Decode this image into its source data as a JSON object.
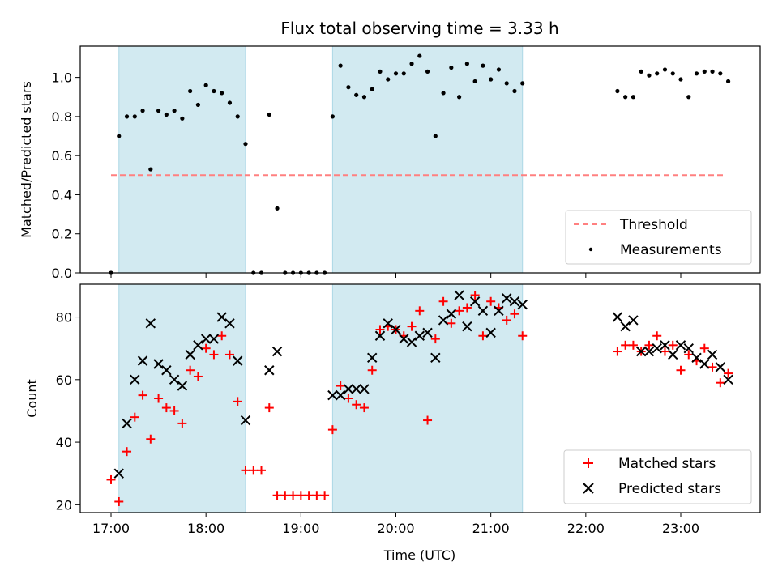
{
  "chart_data": {
    "type": "scatter",
    "title": "Flux total observing time = 3.33 h",
    "xlabel": "Time (UTC)",
    "x_ticks": [
      "17:00",
      "18:00",
      "19:00",
      "20:00",
      "21:00",
      "22:00",
      "23:00"
    ],
    "shaded_intervals": [
      [
        "17:05",
        "18:25"
      ],
      [
        "19:20",
        "21:20"
      ]
    ],
    "shade_color": "#add8e6",
    "panels": [
      {
        "ylabel": "Matched/Predicted stars",
        "ylim": [
          0,
          1.16
        ],
        "y_ticks": [
          "0.0",
          "0.2",
          "0.4",
          "0.6",
          "0.8",
          "1.0"
        ],
        "legend_position": "lower-right",
        "series": [
          {
            "name": "Threshold",
            "kind": "dashed-line",
            "color": "#ff8080",
            "x": [
              "17:00",
              "23:28"
            ],
            "y": [
              0.5,
              0.5
            ]
          },
          {
            "name": "Measurements",
            "kind": "dot",
            "color": "#000000",
            "x": [
              "17:00",
              "17:05",
              "17:10",
              "17:15",
              "17:20",
              "17:25",
              "17:30",
              "17:35",
              "17:40",
              "17:45",
              "17:50",
              "17:55",
              "18:00",
              "18:05",
              "18:10",
              "18:15",
              "18:20",
              "18:25",
              "18:30",
              "18:35",
              "18:40",
              "18:45",
              "18:50",
              "18:55",
              "19:00",
              "19:05",
              "19:10",
              "19:15",
              "19:20",
              "19:25",
              "19:30",
              "19:35",
              "19:40",
              "19:45",
              "19:50",
              "19:55",
              "20:00",
              "20:05",
              "20:10",
              "20:15",
              "20:20",
              "20:25",
              "20:30",
              "20:35",
              "20:40",
              "20:45",
              "20:50",
              "20:55",
              "21:00",
              "21:05",
              "21:10",
              "21:15",
              "21:20",
              "22:20",
              "22:25",
              "22:30",
              "22:35",
              "22:40",
              "22:45",
              "22:50",
              "22:55",
              "23:00",
              "23:05",
              "23:10",
              "23:15",
              "23:20",
              "23:25",
              "23:30"
            ],
            "y": [
              0.0,
              0.7,
              0.8,
              0.8,
              0.83,
              0.53,
              0.83,
              0.81,
              0.83,
              0.79,
              0.93,
              0.86,
              0.96,
              0.93,
              0.92,
              0.87,
              0.8,
              0.66,
              0.0,
              0.0,
              0.81,
              0.33,
              0.0,
              0.0,
              0.0,
              0.0,
              0.0,
              0.0,
              0.8,
              1.06,
              0.95,
              0.91,
              0.9,
              0.94,
              1.03,
              0.99,
              1.02,
              1.02,
              1.07,
              1.11,
              1.03,
              0.7,
              0.92,
              1.05,
              0.9,
              1.07,
              0.98,
              1.06,
              0.99,
              1.04,
              0.97,
              0.93,
              0.97,
              0.93,
              0.9,
              0.9,
              1.03,
              1.01,
              1.02,
              1.04,
              1.02,
              0.99,
              0.9,
              1.02,
              1.03,
              1.03,
              1.02,
              0.98
            ]
          }
        ]
      },
      {
        "ylabel": "Count",
        "ylim": [
          17.5,
          90.5
        ],
        "y_ticks": [
          "20",
          "40",
          "60",
          "80"
        ],
        "legend_position": "lower-right",
        "series": [
          {
            "name": "Matched stars",
            "kind": "plus",
            "color": "#ff0000",
            "x": [
              "17:00",
              "17:05",
              "17:10",
              "17:15",
              "17:20",
              "17:25",
              "17:30",
              "17:35",
              "17:40",
              "17:45",
              "17:50",
              "17:55",
              "18:00",
              "18:05",
              "18:10",
              "18:15",
              "18:20",
              "18:25",
              "18:30",
              "18:35",
              "18:40",
              "18:45",
              "18:50",
              "18:55",
              "19:00",
              "19:05",
              "19:10",
              "19:15",
              "19:20",
              "19:25",
              "19:30",
              "19:35",
              "19:40",
              "19:45",
              "19:50",
              "19:55",
              "20:00",
              "20:05",
              "20:10",
              "20:15",
              "20:20",
              "20:25",
              "20:30",
              "20:35",
              "20:40",
              "20:45",
              "20:50",
              "20:55",
              "21:00",
              "21:05",
              "21:10",
              "21:15",
              "21:20",
              "22:20",
              "22:25",
              "22:30",
              "22:35",
              "22:40",
              "22:45",
              "22:50",
              "22:55",
              "23:00",
              "23:05",
              "23:10",
              "23:15",
              "23:20",
              "23:25",
              "23:30"
            ],
            "y": [
              28,
              21,
              37,
              48,
              55,
              41,
              54,
              51,
              50,
              46,
              63,
              61,
              70,
              68,
              74,
              68,
              53,
              31,
              31,
              31,
              51,
              23,
              23,
              23,
              23,
              23,
              23,
              23,
              44,
              58,
              54,
              52,
              51,
              63,
              76,
              77,
              76,
              74,
              77,
              82,
              47,
              73,
              85,
              78,
              82,
              83,
              87,
              74,
              85,
              83,
              79,
              81,
              74,
              69,
              71,
              71,
              69,
              71,
              74,
              69,
              71,
              63,
              68,
              66,
              70,
              64,
              59,
              62
            ],
            "note": ""
          },
          {
            "name": "Predicted stars",
            "kind": "cross",
            "color": "#000000",
            "x": [
              "17:05",
              "17:10",
              "17:15",
              "17:20",
              "17:25",
              "17:30",
              "17:35",
              "17:40",
              "17:45",
              "17:50",
              "17:55",
              "18:00",
              "18:05",
              "18:10",
              "18:15",
              "18:20",
              "18:25",
              "18:40",
              "18:45",
              "19:20",
              "19:25",
              "19:30",
              "19:35",
              "19:40",
              "19:45",
              "19:50",
              "19:55",
              "20:00",
              "20:05",
              "20:10",
              "20:15",
              "20:20",
              "20:25",
              "20:30",
              "20:35",
              "20:40",
              "20:45",
              "20:50",
              "20:55",
              "21:00",
              "21:05",
              "21:10",
              "21:15",
              "21:20",
              "22:20",
              "22:25",
              "22:30",
              "22:35",
              "22:40",
              "22:45",
              "22:50",
              "22:55",
              "23:00",
              "23:05",
              "23:10",
              "23:15",
              "23:20",
              "23:25",
              "23:30"
            ],
            "y": [
              30,
              46,
              60,
              66,
              78,
              65,
              63,
              60,
              58,
              68,
              71,
              73,
              73,
              80,
              78,
              66,
              47,
              63,
              69,
              55,
              55,
              57,
              57,
              57,
              67,
              74,
              78,
              76,
              73,
              72,
              74,
              75,
              67,
              79,
              81,
              87,
              77,
              85,
              82,
              75,
              82,
              86,
              85,
              84,
              80,
              77,
              79,
              69,
              69,
              70,
              71,
              68,
              71,
              70,
              67,
              65,
              68,
              64,
              60
            ]
          }
        ]
      }
    ]
  }
}
